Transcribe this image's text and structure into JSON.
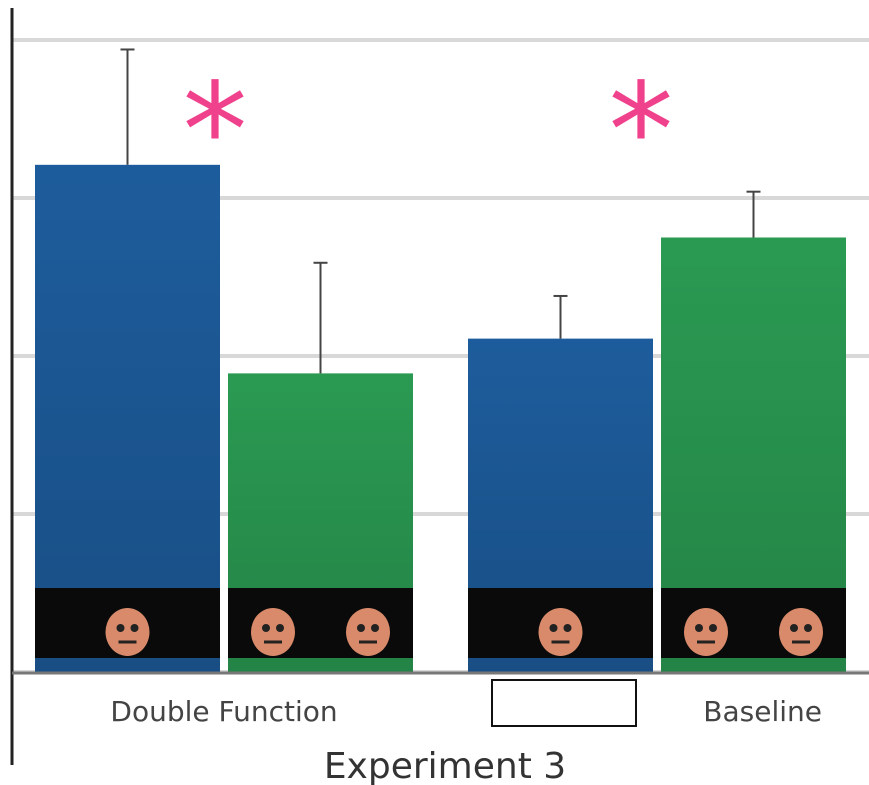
{
  "chart_data": {
    "type": "bar",
    "x_label": "Experiment 3",
    "categories": [
      "Double Function",
      "Baseline"
    ],
    "series": [
      {
        "color": "#1d5c9c",
        "values": [
          3.21,
          2.11
        ],
        "errors": [
          0.73,
          0.27
        ]
      },
      {
        "color": "#2a9a52",
        "values": [
          1.89,
          2.75
        ],
        "errors": [
          0.7,
          0.29
        ]
      }
    ],
    "annotations": [
      {
        "text": "*",
        "category": 0
      },
      {
        "text": "*",
        "category": 1
      }
    ],
    "annotation_color": "#f0418c",
    "ylim": [
      0,
      4
    ],
    "yticks": [
      0,
      1,
      2,
      3,
      4
    ],
    "grid": true
  }
}
